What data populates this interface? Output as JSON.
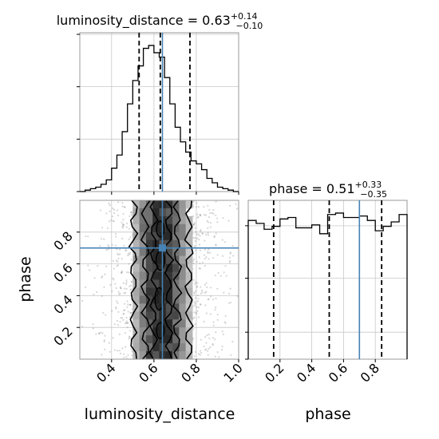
{
  "chart_data": {
    "type": "corner",
    "truth_color": "#4682b4",
    "panels": [
      {
        "kind": "histogram",
        "param": "luminosity_distance",
        "title_main": "luminosity_distance = 0.63",
        "title_plus": "+0.14",
        "title_minus": "−0.10",
        "xlim": [
          0.25,
          1.0
        ],
        "bins": [
          0.25,
          0.275,
          0.3,
          0.325,
          0.35,
          0.375,
          0.4,
          0.425,
          0.45,
          0.475,
          0.5,
          0.525,
          0.55,
          0.575,
          0.6,
          0.625,
          0.65,
          0.675,
          0.7,
          0.725,
          0.75,
          0.775,
          0.8,
          0.825,
          0.85,
          0.875,
          0.9,
          0.925,
          0.95,
          0.975,
          1.0
        ],
        "heights": [
          0.0,
          0.01,
          0.02,
          0.03,
          0.05,
          0.08,
          0.16,
          0.25,
          0.41,
          0.6,
          0.76,
          0.86,
          0.98,
          1.0,
          0.95,
          0.92,
          0.78,
          0.6,
          0.44,
          0.34,
          0.27,
          0.21,
          0.19,
          0.15,
          0.09,
          0.06,
          0.03,
          0.02,
          0.01,
          0.0
        ],
        "quantiles": [
          0.53,
          0.63,
          0.77
        ],
        "truth": 0.64
      },
      {
        "kind": "histogram",
        "param": "phase",
        "title_main": "phase = 0.51",
        "title_plus": "+0.33",
        "title_minus": "−0.35",
        "xlim": [
          0.0,
          1.0
        ],
        "bins": [
          0.0,
          0.05,
          0.1,
          0.15,
          0.2,
          0.25,
          0.3,
          0.35,
          0.4,
          0.45,
          0.5,
          0.55,
          0.6,
          0.65,
          0.7,
          0.75,
          0.8,
          0.85,
          0.9,
          0.95,
          1.0
        ],
        "heights": [
          0.94,
          0.92,
          0.88,
          0.9,
          0.95,
          0.96,
          0.89,
          0.89,
          0.91,
          0.85,
          0.98,
          0.99,
          0.96,
          0.96,
          0.97,
          0.94,
          0.87,
          0.9,
          0.93,
          0.98
        ],
        "quantiles": [
          0.16,
          0.51,
          0.84
        ],
        "truth": 0.7
      },
      {
        "kind": "density2d",
        "x_param": "luminosity_distance",
        "y_param": "phase",
        "xlim": [
          0.25,
          1.0
        ],
        "ylim": [
          0.0,
          1.0
        ],
        "truth": [
          0.64,
          0.7
        ],
        "contour_levels": [
          0.39,
          0.86,
          0.99
        ]
      }
    ],
    "x_ticks_ld": [
      "0.4",
      "0.6",
      "0.8",
      "1.0"
    ],
    "x_ticks_phase": [
      "0.2",
      "0.4",
      "0.6",
      "0.8"
    ],
    "y_ticks_phase": [
      "0.2",
      "0.4",
      "0.6",
      "0.8"
    ],
    "xlabel_left": "luminosity_distance",
    "xlabel_right": "phase",
    "ylabel": "phase",
    "grid": true
  }
}
